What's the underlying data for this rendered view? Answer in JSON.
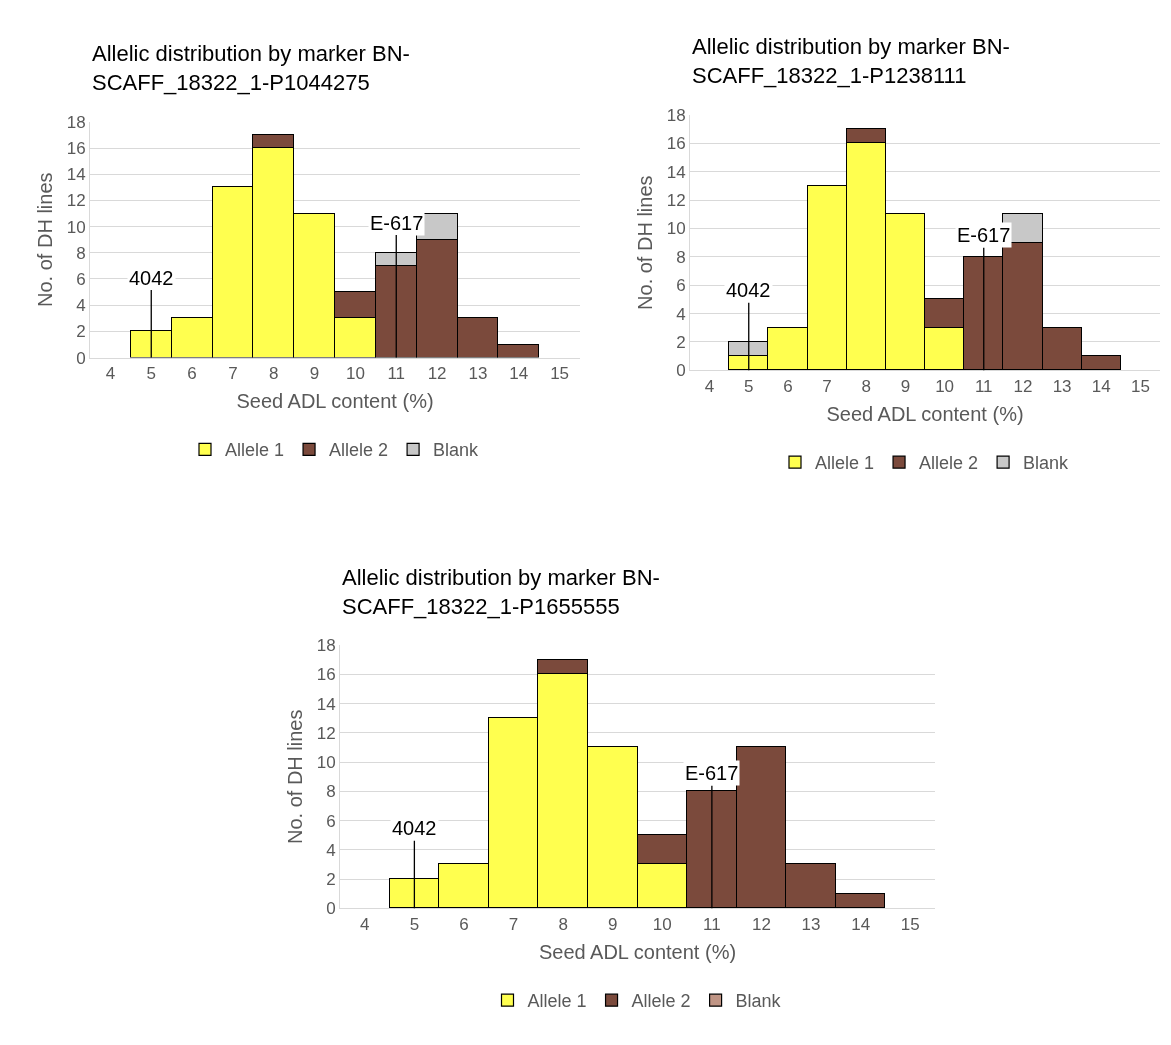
{
  "chart_data": [
    {
      "type": "bar",
      "stacked": true,
      "title": "Allelic distribution by marker BN-\nSCAFF_18322_1-P1044275",
      "xlabel": "Seed ADL content (%)",
      "ylabel": "No. of DH lines",
      "categories": [
        "4",
        "5",
        "6",
        "7",
        "8",
        "9",
        "10",
        "11",
        "12",
        "13",
        "14",
        "15"
      ],
      "series": [
        {
          "name": "Allele 1",
          "color": "#ffff4f",
          "values": [
            null,
            2,
            3,
            13,
            16,
            11,
            3,
            null,
            null,
            null,
            null,
            null
          ]
        },
        {
          "name": "Allele 2",
          "color": "#7b4a3c",
          "values": [
            null,
            null,
            null,
            null,
            1,
            null,
            2,
            7,
            9,
            3,
            1,
            null
          ]
        },
        {
          "name": "Blank",
          "color": "#c8c8c8",
          "values": [
            null,
            null,
            null,
            null,
            null,
            null,
            null,
            1,
            2,
            null,
            null,
            null
          ]
        }
      ],
      "ylim": [
        0,
        18
      ],
      "yticks": [
        0,
        2,
        4,
        6,
        8,
        10,
        12,
        14,
        16,
        18
      ],
      "grid": "y",
      "legend": "bottom",
      "annotations": [
        {
          "text": "4042",
          "x": "5",
          "y": 0
        },
        {
          "text": "E-617",
          "x": "11",
          "y": 0
        }
      ]
    },
    {
      "type": "bar",
      "stacked": true,
      "title": "Allelic distribution by marker BN-\nSCAFF_18322_1-P1238111",
      "xlabel": "Seed ADL content (%)",
      "ylabel": "No. of DH lines",
      "categories": [
        "4",
        "5",
        "6",
        "7",
        "8",
        "9",
        "10",
        "11",
        "12",
        "13",
        "14",
        "15"
      ],
      "series": [
        {
          "name": "Allele 1",
          "color": "#ffff4f",
          "values": [
            null,
            1,
            3,
            13,
            16,
            11,
            3,
            null,
            null,
            null,
            null,
            null
          ]
        },
        {
          "name": "Allele 2",
          "color": "#7b4a3c",
          "values": [
            null,
            null,
            null,
            null,
            1,
            null,
            2,
            8,
            9,
            3,
            1,
            null
          ]
        },
        {
          "name": "Blank",
          "color": "#c8c8c8",
          "values": [
            null,
            1,
            null,
            null,
            null,
            null,
            null,
            null,
            2,
            null,
            null,
            null
          ]
        }
      ],
      "ylim": [
        0,
        18
      ],
      "yticks": [
        0,
        2,
        4,
        6,
        8,
        10,
        12,
        14,
        16,
        18
      ],
      "grid": "y",
      "legend": "bottom",
      "annotations": [
        {
          "text": "4042",
          "x": "5",
          "y": 0
        },
        {
          "text": "E-617",
          "x": "11",
          "y": 0
        }
      ]
    },
    {
      "type": "bar",
      "stacked": true,
      "title": "Allelic distribution by marker BN-\nSCAFF_18322_1-P1655555",
      "xlabel": "Seed ADL content (%)",
      "ylabel": "No. of DH lines",
      "categories": [
        "4",
        "5",
        "6",
        "7",
        "8",
        "9",
        "10",
        "11",
        "12",
        "13",
        "14",
        "15"
      ],
      "series": [
        {
          "name": "Allele 1",
          "color": "#ffff4f",
          "values": [
            null,
            2,
            3,
            13,
            16,
            11,
            3,
            null,
            null,
            null,
            null,
            null
          ]
        },
        {
          "name": "Allele 2",
          "color": "#7b4a3c",
          "values": [
            null,
            null,
            null,
            null,
            1,
            null,
            2,
            8,
            11,
            3,
            1,
            null
          ]
        },
        {
          "name": "Blank",
          "color": "#c09585",
          "values": [
            null,
            null,
            null,
            null,
            null,
            null,
            null,
            null,
            null,
            null,
            null,
            null
          ]
        }
      ],
      "ylim": [
        0,
        18
      ],
      "yticks": [
        0,
        2,
        4,
        6,
        8,
        10,
        12,
        14,
        16,
        18
      ],
      "grid": "y",
      "legend": "bottom",
      "annotations": [
        {
          "text": "4042",
          "x": "5",
          "y": 0
        },
        {
          "text": "E-617",
          "x": "11",
          "y": 0
        }
      ]
    }
  ]
}
